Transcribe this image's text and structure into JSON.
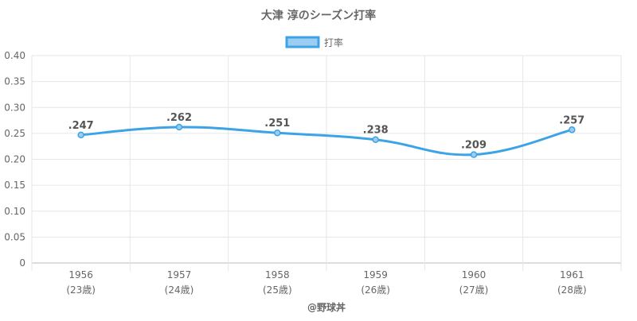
{
  "chart_data": {
    "type": "line",
    "title": "大津 淳のシーズン打率",
    "categories": [
      "1956",
      "1957",
      "1958",
      "1959",
      "1960",
      "1961"
    ],
    "age_labels": [
      "(23歳)",
      "(24歳)",
      "(25歳)",
      "(26歳)",
      "(27歳)",
      "(28歳)"
    ],
    "series": [
      {
        "name": "打率",
        "values": [
          0.247,
          0.262,
          0.251,
          0.238,
          0.209,
          0.257
        ],
        "labels": [
          ".247",
          ".262",
          ".251",
          ".238",
          ".209",
          ".257"
        ],
        "color": "#3ca3e6",
        "fill_color": "#9ccdf0"
      }
    ],
    "ylim": [
      0,
      0.4
    ],
    "yticks": [
      "0",
      "0.05",
      "0.10",
      "0.15",
      "0.20",
      "0.25",
      "0.30",
      "0.35",
      "0.40"
    ],
    "xlabel": "",
    "ylabel": "",
    "legend_position": "top",
    "grid": true
  },
  "credit": "@野球丼"
}
